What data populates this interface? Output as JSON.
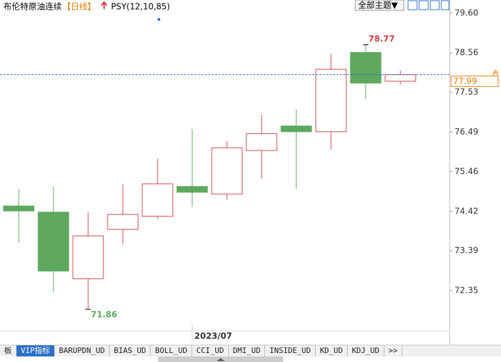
{
  "chart_data": {
    "type": "candlestick",
    "title": "布伦特原油连续",
    "period": "【日线】",
    "indicator": "PSY(12,10,85)",
    "theme_button": "全部主题▼",
    "categories": [
      null,
      null,
      null,
      null,
      null,
      "2023/07",
      null,
      null,
      null,
      null,
      null,
      null
    ],
    "open": [
      74.56,
      74.4,
      72.66,
      73.95,
      74.29,
      75.07,
      74.87,
      76.01,
      76.65,
      76.5,
      78.57,
      77.82
    ],
    "high": [
      75.0,
      75.07,
      74.4,
      75.12,
      75.79,
      76.57,
      76.26,
      76.94,
      77.08,
      78.53,
      78.77,
      78.1
    ],
    "low": [
      73.6,
      72.31,
      71.86,
      73.56,
      74.23,
      74.54,
      74.72,
      75.27,
      75.01,
      76.03,
      77.35,
      77.73
    ],
    "close": [
      74.43,
      72.86,
      73.78,
      74.34,
      75.14,
      74.92,
      76.08,
      76.45,
      76.5,
      78.13,
      77.77,
      77.99
    ],
    "up_color": "#d0454a",
    "down_color": "#5ea85e",
    "price_color": "#e07b00",
    "ylim": [
      71.3,
      79.85
    ],
    "yticks": [
      {
        "value": 79.6,
        "label": "79.60"
      },
      78.56,
      77.53,
      76.49,
      75.46,
      74.42,
      73.39,
      72.35
    ]
  },
  "tabs": [
    "板",
    "VIP指标",
    "BARUPDN_UD",
    "BIAS_UD",
    "BOLL_UD",
    "CCI_UD",
    "DMI_UD",
    "INSIDE_UD",
    "KD_UD",
    "KDJ_UD",
    ">>"
  ]
}
